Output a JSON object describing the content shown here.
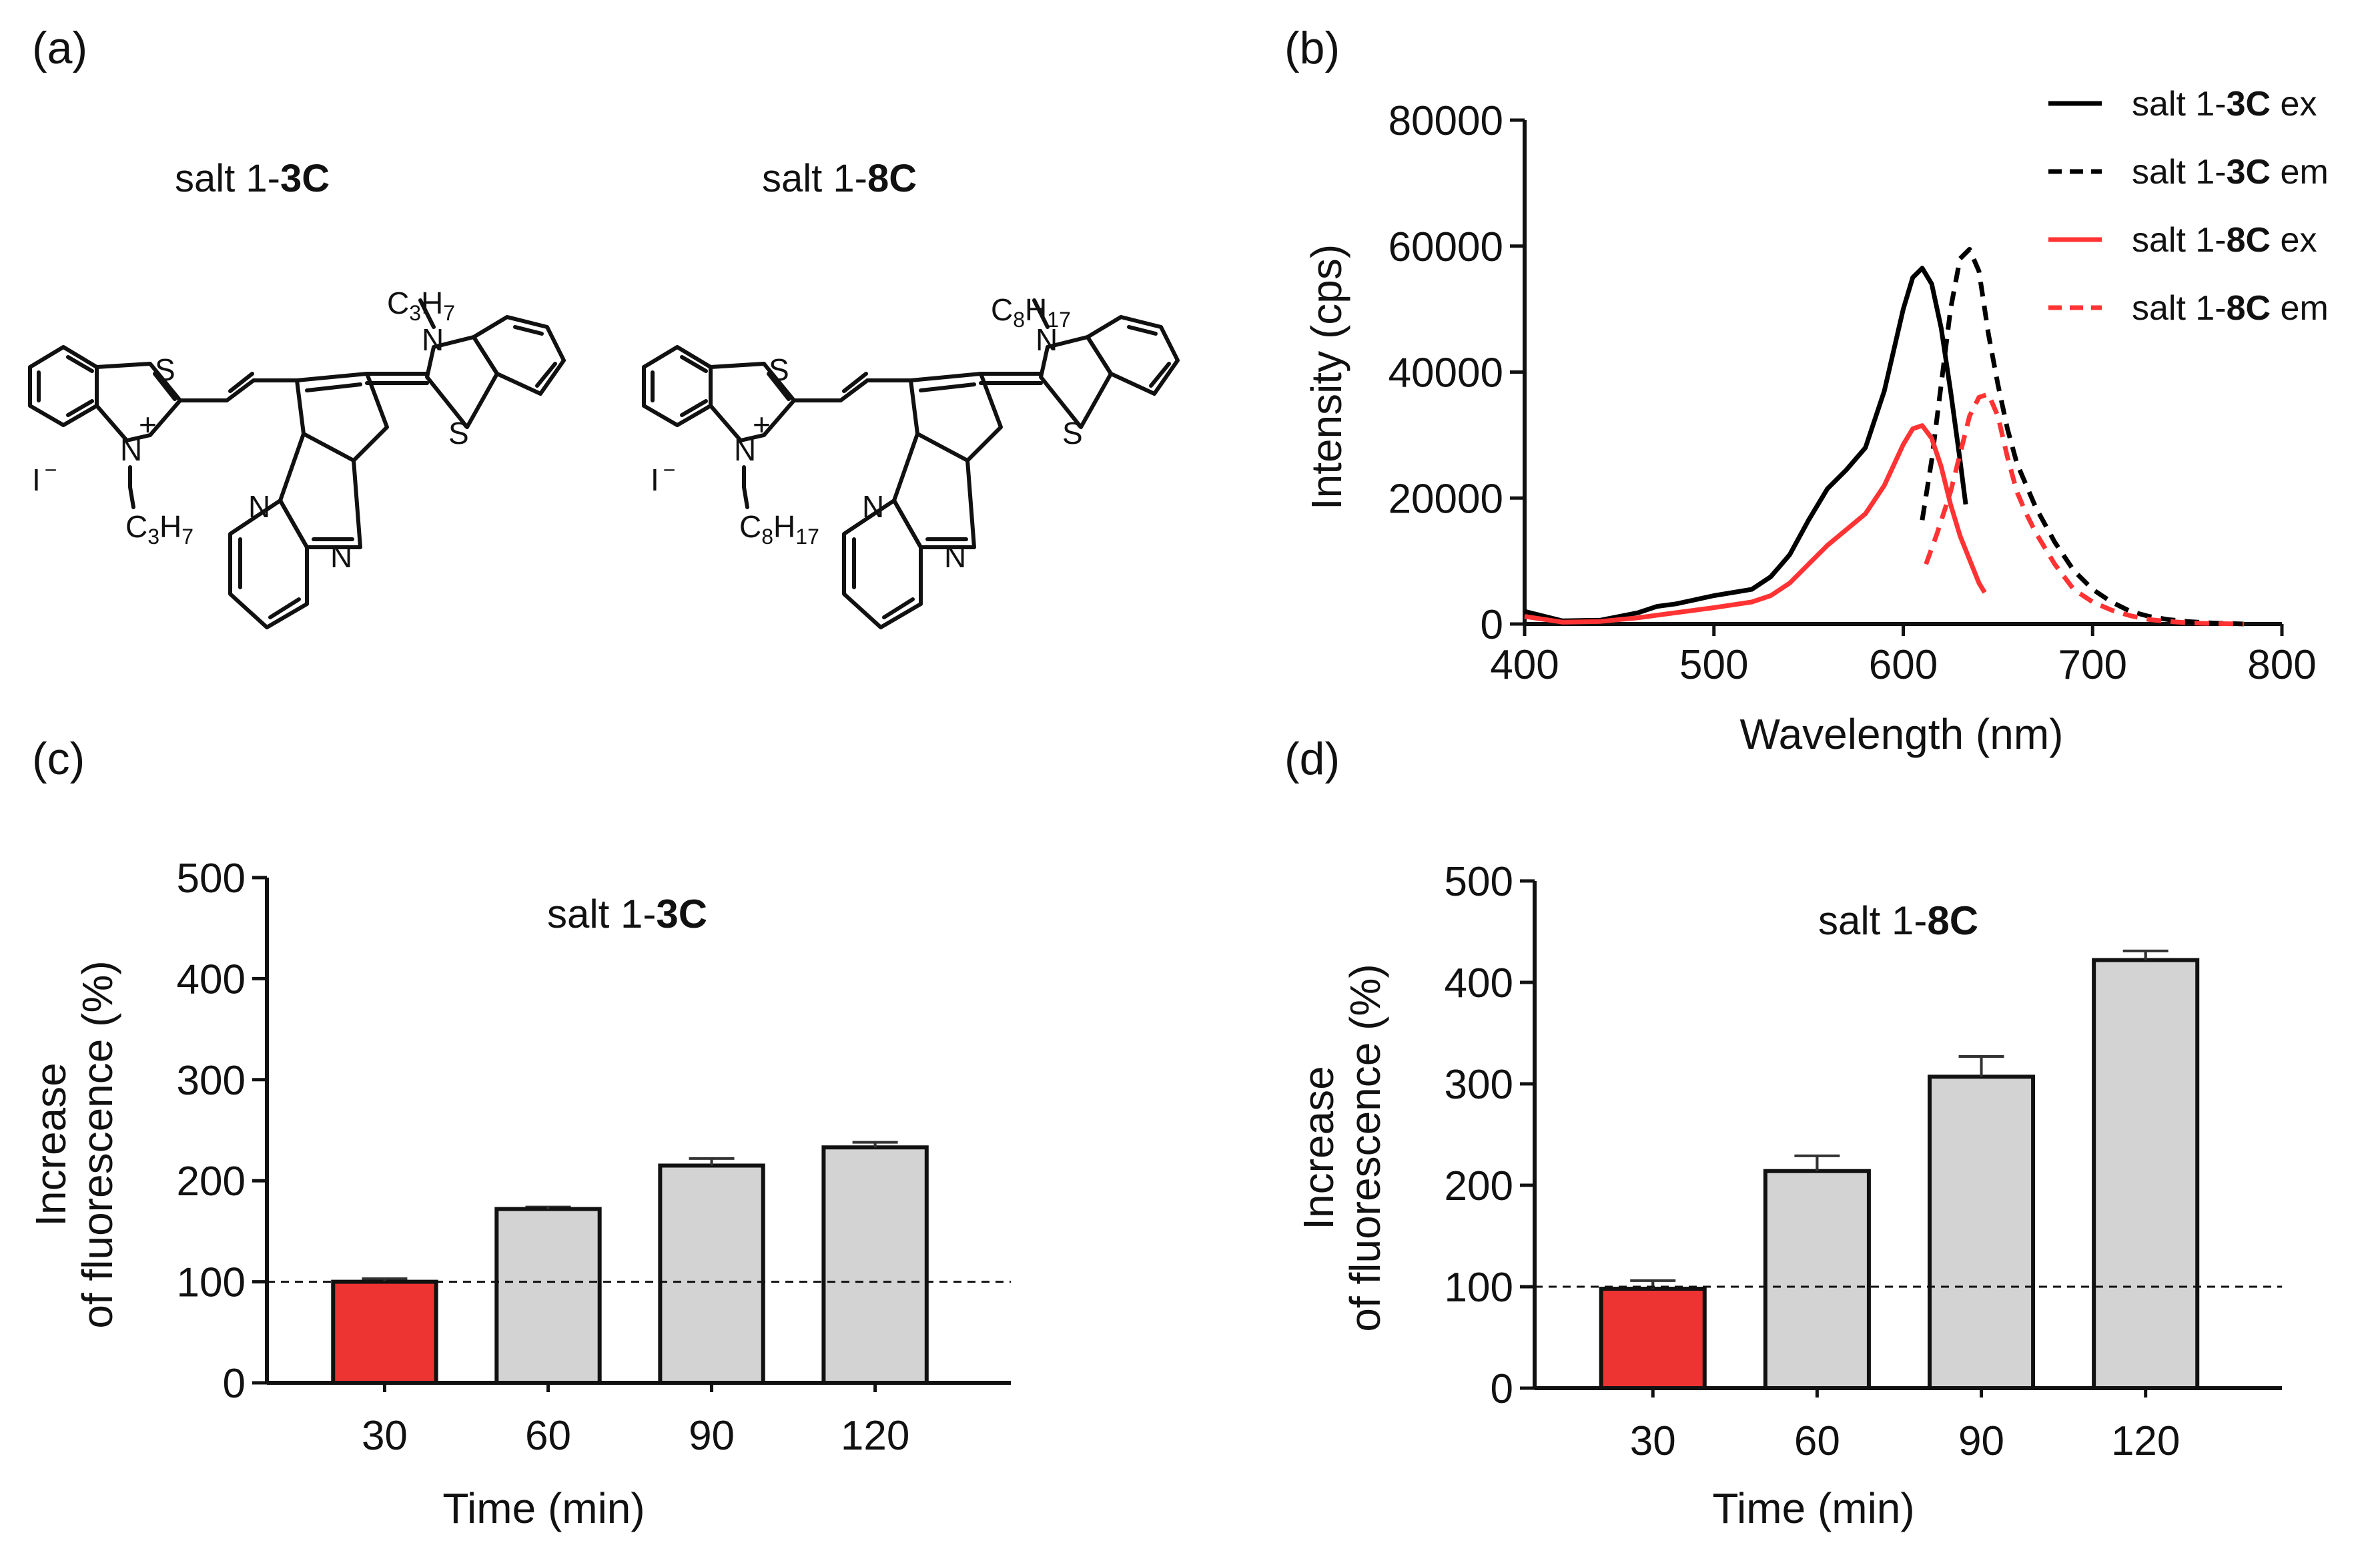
{
  "panels": {
    "a": {
      "label": "(a)",
      "molecules": [
        {
          "title_prefix": "salt 1-",
          "title_bold": "3C",
          "counterion": "I",
          "charge": "−",
          "plus": "+",
          "substituent_main": "C",
          "substituent_sub1": "3",
          "substituent_h": "H",
          "substituent_sub2": "7",
          "atoms": {
            "S": "S",
            "N": "N"
          }
        },
        {
          "title_prefix": "salt 1-",
          "title_bold": "8C",
          "counterion": "I",
          "charge": "−",
          "plus": "+",
          "substituent_main": "C",
          "substituent_sub1": "8",
          "substituent_h": "H",
          "substituent_sub2": "17",
          "atoms": {
            "S": "S",
            "N": "N"
          }
        }
      ]
    },
    "b": {
      "label": "(b)"
    },
    "c": {
      "label": "(c)"
    },
    "d": {
      "label": "(d)"
    }
  },
  "chart_data": [
    {
      "id": "b",
      "type": "line",
      "xlabel": "Wavelength (nm)",
      "ylabel": "Intensity (cps)",
      "xlim": [
        400,
        800
      ],
      "ylim": [
        0,
        80000
      ],
      "xticks": [
        "400",
        "500",
        "600",
        "700",
        "800"
      ],
      "yticks": [
        "0",
        "20000",
        "40000",
        "60000",
        "80000"
      ],
      "legend_position": "top-right",
      "series": [
        {
          "name_prefix": "salt 1-",
          "name_bold": "3C",
          "name_suffix": " ex",
          "color": "#000000",
          "style": "solid",
          "x": [
            400,
            420,
            440,
            460,
            470,
            480,
            500,
            520,
            530,
            540,
            550,
            560,
            570,
            580,
            590,
            600,
            605,
            610,
            615,
            620,
            625,
            630,
            633
          ],
          "y": [
            2000,
            500,
            600,
            1800,
            2800,
            3200,
            4500,
            5500,
            7500,
            11000,
            16500,
            21500,
            24500,
            28000,
            37000,
            50000,
            55000,
            56500,
            54000,
            47000,
            37000,
            26000,
            19000
          ]
        },
        {
          "name_prefix": "salt 1-",
          "name_bold": "3C",
          "name_suffix": " em",
          "color": "#000000",
          "style": "dashed",
          "x": [
            610,
            615,
            620,
            625,
            630,
            635,
            640,
            645,
            650,
            655,
            660,
            670,
            680,
            690,
            700,
            710,
            720,
            730,
            740,
            750,
            760,
            780
          ],
          "y": [
            16500,
            26000,
            38000,
            50000,
            58000,
            59500,
            56000,
            46000,
            38000,
            31000,
            25500,
            18500,
            13000,
            8500,
            5500,
            3500,
            2000,
            1200,
            700,
            400,
            200,
            0
          ]
        },
        {
          "name_prefix": "salt 1-",
          "name_bold": "8C",
          "name_suffix": " ex",
          "color": "#ff3333",
          "style": "solid",
          "x": [
            400,
            420,
            440,
            460,
            480,
            500,
            520,
            530,
            540,
            550,
            560,
            570,
            580,
            590,
            600,
            605,
            610,
            615,
            620,
            625,
            630,
            640,
            643
          ],
          "y": [
            1200,
            300,
            400,
            1000,
            1800,
            2600,
            3500,
            4500,
            6500,
            9500,
            12500,
            15000,
            17500,
            22000,
            28500,
            31000,
            31500,
            29500,
            25000,
            19000,
            14000,
            6500,
            5000
          ]
        },
        {
          "name_prefix": "salt 1-",
          "name_bold": "8C",
          "name_suffix": " em",
          "color": "#ff3333",
          "style": "dashed",
          "x": [
            612,
            618,
            625,
            630,
            635,
            640,
            645,
            650,
            655,
            660,
            665,
            670,
            675,
            680,
            690,
            700,
            710,
            720,
            730,
            740,
            750,
            760,
            780
          ],
          "y": [
            9500,
            14500,
            21000,
            27000,
            33000,
            36000,
            36500,
            33000,
            26500,
            21000,
            17500,
            14500,
            12000,
            9500,
            5500,
            3500,
            2200,
            1300,
            700,
            400,
            200,
            100,
            0
          ]
        }
      ]
    },
    {
      "id": "c",
      "type": "bar",
      "title_prefix": "salt 1-",
      "title_bold": "3C",
      "xlabel": "Time (min)",
      "ylabel_line1": "Increase",
      "ylabel_line2": "of fluorescence (%)",
      "categories": [
        "30",
        "60",
        "90",
        "120"
      ],
      "values": [
        100,
        172,
        215,
        233
      ],
      "errors": [
        3,
        2,
        7,
        5
      ],
      "bar_colors": [
        "#ee3333",
        "#d3d3d3",
        "#d3d3d3",
        "#d3d3d3"
      ],
      "ylim": [
        0,
        500
      ],
      "yticks": [
        "0",
        "100",
        "200",
        "300",
        "400",
        "500"
      ],
      "reference_line": 100
    },
    {
      "id": "d",
      "type": "bar",
      "title_prefix": "salt 1-",
      "title_bold": "8C",
      "xlabel": "Time (min)",
      "ylabel_line1": "Increase",
      "ylabel_line2": "of fluorescence (%)",
      "categories": [
        "30",
        "60",
        "90",
        "120"
      ],
      "values": [
        98,
        214,
        307,
        422
      ],
      "errors": [
        8,
        15,
        20,
        9
      ],
      "bar_colors": [
        "#ee3333",
        "#d3d3d3",
        "#d3d3d3",
        "#d3d3d3"
      ],
      "ylim": [
        0,
        500
      ],
      "yticks": [
        "0",
        "100",
        "200",
        "300",
        "400",
        "500"
      ],
      "reference_line": 100
    }
  ]
}
